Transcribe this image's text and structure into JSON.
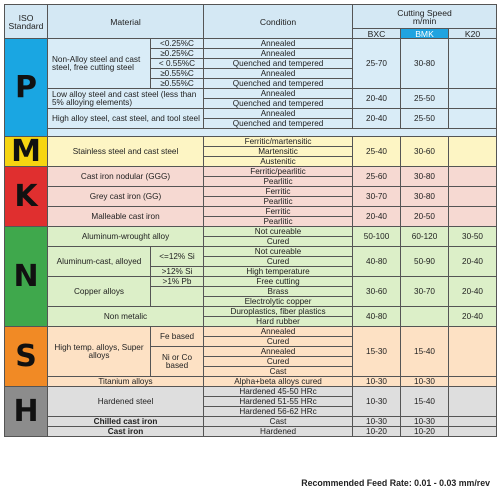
{
  "header": {
    "iso": "ISO Standard",
    "material": "Material",
    "condition": "Condition",
    "speed_title": "Cutting Speed",
    "speed_unit": "m/min",
    "bxc": "BXC",
    "bmk": "BMK",
    "k20": "K20"
  },
  "groups": {
    "p": {
      "letter": "P",
      "r1": {
        "material": "Non-Alloy steel and cast steel, free cutting steel",
        "c1": "<0.25%C",
        "c2": "≥0.25%C",
        "c3": "< 0.55%C",
        "c4": "≥0.55%C",
        "c5": "≥0.55%C",
        "cond1": "Annealed",
        "cond2": "Annealed",
        "cond3": "Quenched and tempered",
        "cond4": "Annealed",
        "cond5": "Quenched and tempered",
        "bxc": "25-70",
        "bmk": "30-80",
        "k20": ""
      },
      "r2": {
        "material": "Low alloy steel and cast steel (less than 5% alloying elements)",
        "cond1": "Annealed",
        "cond2": "Quenched and tempered",
        "bxc": "20-40",
        "bmk": "25-50",
        "k20": ""
      },
      "r3": {
        "material": "High alloy steel, cast steel, and tool steel",
        "cond1": "Annealed",
        "cond2": "Quenched and tempered",
        "bxc": "20-40",
        "bmk": "25-50",
        "k20": ""
      }
    },
    "m": {
      "letter": "M",
      "r1": {
        "material": "Stainless steel and cast steel",
        "cond1": "Ferritic/martensitic",
        "cond2": "Martensitic",
        "cond3": "Austenitic",
        "bxc": "25-40",
        "bmk": "30-60",
        "k20": ""
      }
    },
    "k": {
      "letter": "K",
      "r1": {
        "material": "Cast iron nodular (GGG)",
        "cond1": "Ferritic/pearlitic",
        "cond2": "Pearlitic",
        "bxc": "25-60",
        "bmk": "30-80",
        "k20": ""
      },
      "r2": {
        "material": "Grey cast iron (GG)",
        "cond1": "Ferritic",
        "cond2": "Pearlitic",
        "bxc": "30-70",
        "bmk": "30-80",
        "k20": ""
      },
      "r3": {
        "material": "Malleable cast iron",
        "cond1": "Ferritic",
        "cond2": "Pearlitic",
        "bxc": "20-40",
        "bmk": "20-50",
        "k20": ""
      }
    },
    "n": {
      "letter": "N",
      "r1": {
        "material": "Aluminum-wrought alloy",
        "cond1": "Not cureable",
        "cond2": "Cured",
        "bxc": "50-100",
        "bmk": "60-120",
        "k20": "30-50"
      },
      "r2": {
        "material": "Aluminum-cast, alloyed",
        "s1": "<=12% Si",
        "s2": ">12% Si",
        "cond1": "Not cureable",
        "cond2": "Cured",
        "cond3": "High temperature",
        "bxc": "40-80",
        "bmk": "50-90",
        "k20": "20-40"
      },
      "r3": {
        "material": "Copper alloys",
        "s1": ">1% Pb",
        "cond1": "Free cutting",
        "cond2": "Brass",
        "cond3": "Electrolytic copper",
        "bxc": "30-60",
        "bmk": "30-70",
        "k20": "20-40"
      },
      "r4": {
        "material": "Non metalic",
        "cond1": "Duroplastics, fiber plastics",
        "cond2": "Hard rubber",
        "bxc": "40-80",
        "bmk": "",
        "k20": "20-40"
      }
    },
    "s": {
      "letter": "S",
      "r1": {
        "material": "High temp. alloys, Super alloys",
        "s1": "Fe based",
        "s2": "Ni or Co based",
        "cond1": "Annealed",
        "cond2": "Cured",
        "cond3": "Annealed",
        "cond4": "Cured",
        "cond5": "Cast",
        "bxc": "15-30",
        "bmk": "15-40",
        "k20": ""
      },
      "r2": {
        "material": "Titanium alloys",
        "cond1": "Alpha+beta alloys cured",
        "bxc": "10-30",
        "bmk": "10-30",
        "k20": ""
      }
    },
    "h": {
      "letter": "H",
      "r1": {
        "material": "Hardened steel",
        "cond1": "Hardened  45-50 HRc",
        "cond2": "Hardened  51-55 HRc",
        "cond3": "Hardened  56-62 HRc",
        "bxc": "10-30",
        "bmk": "15-40",
        "k20": ""
      },
      "r2": {
        "material": "Chilled cast iron",
        "cond1": "Cast",
        "bxc": "10-30",
        "bmk": "10-30",
        "k20": ""
      },
      "r3": {
        "material": "Cast iron",
        "cond1": "Hardened",
        "bxc": "10-20",
        "bmk": "10-20",
        "k20": ""
      }
    }
  },
  "footer": "Recommended Feed Rate: 0.01 - 0.03 mm/rev"
}
